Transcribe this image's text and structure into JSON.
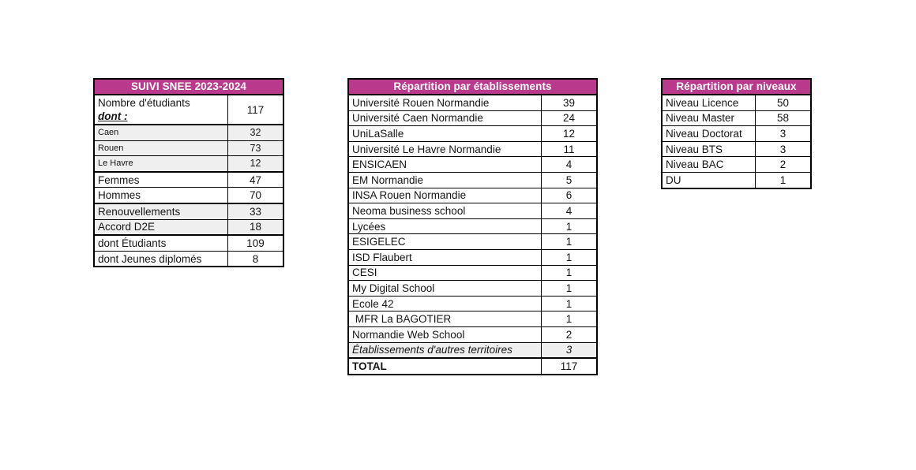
{
  "colors": {
    "header_bg": "#b93a8d",
    "header_text": "#ffffff",
    "border": "#000000",
    "shaded_row": "#efefef"
  },
  "tables": {
    "suivi": {
      "title": "SUIVI SNEE 2023-2024",
      "rows": [
        {
          "label": "Nombre d'étudiants",
          "label2": "dont :",
          "value": "117",
          "tall": true,
          "group_end": true
        },
        {
          "label": "Caen",
          "value": "32",
          "small": true,
          "shaded": true
        },
        {
          "label": "Rouen",
          "value": "73",
          "small": true,
          "shaded": true
        },
        {
          "label": "Le Havre",
          "value": "12",
          "small": true,
          "shaded": true,
          "group_end": true
        },
        {
          "label": "Femmes",
          "value": "47"
        },
        {
          "label": "Hommes",
          "value": "70",
          "group_end": true
        },
        {
          "label": "Renouvellements",
          "value": "33",
          "shaded": true
        },
        {
          "label": "Accord D2E",
          "value": "18",
          "shaded": true,
          "group_end": true
        },
        {
          "label": "dont Étudiants",
          "value": "109"
        },
        {
          "label": "dont Jeunes diplomés",
          "value": "8"
        }
      ]
    },
    "etablissements": {
      "title": "Répartition par établissements",
      "rows": [
        {
          "label": "Université Rouen Normandie",
          "value": "39"
        },
        {
          "label": "Université Caen Normandie",
          "value": "24"
        },
        {
          "label": "UniLaSalle",
          "value": "12"
        },
        {
          "label": "Université Le Havre Normandie",
          "value": "11"
        },
        {
          "label": "ENSICAEN",
          "value": "4"
        },
        {
          "label": "EM Normandie",
          "value": "5"
        },
        {
          "label": "INSA Rouen Normandie",
          "value": "6"
        },
        {
          "label": "Neoma business school",
          "value": "4"
        },
        {
          "label": "Lycées",
          "value": "1"
        },
        {
          "label": "ESIGELEC",
          "value": "1"
        },
        {
          "label": "ISD Flaubert",
          "value": "1"
        },
        {
          "label": "CESI",
          "value": "1"
        },
        {
          "label": "My Digital School",
          "value": "1"
        },
        {
          "label": "Ecole 42",
          "value": "1"
        },
        {
          "label": " MFR La BAGOTIER",
          "value": "1"
        },
        {
          "label": "Normandie Web School",
          "value": "2"
        },
        {
          "label": "Établissements d'autres territoires",
          "value": "3",
          "italic": true,
          "shaded": true,
          "group_end": true
        },
        {
          "label": "TOTAL",
          "value": "117",
          "bold_label": true
        }
      ]
    },
    "niveaux": {
      "title": "Répartition par niveaux",
      "rows": [
        {
          "label": "Niveau Licence",
          "value": "50"
        },
        {
          "label": "Niveau Master",
          "value": "58"
        },
        {
          "label": "Niveau Doctorat",
          "value": "3"
        },
        {
          "label": "Niveau BTS",
          "value": "3"
        },
        {
          "label": "Niveau BAC",
          "value": "2"
        },
        {
          "label": "DU",
          "value": "1"
        }
      ]
    }
  }
}
